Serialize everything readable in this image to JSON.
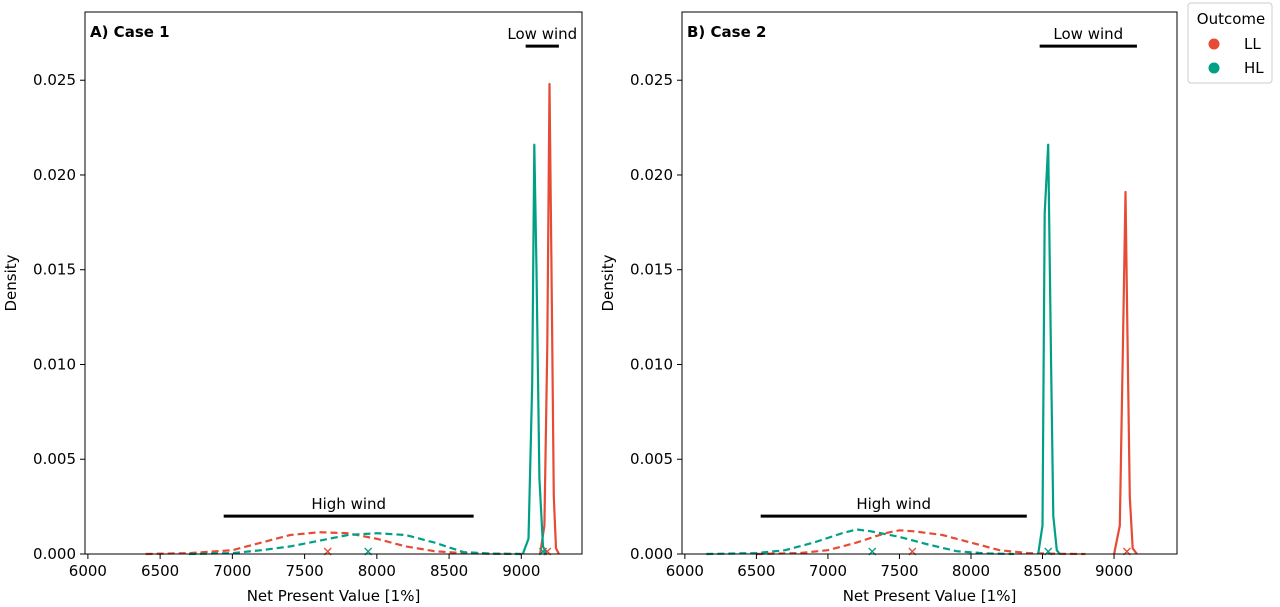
{
  "legend": {
    "title": "Outcome",
    "entries": [
      {
        "name": "LL",
        "color": "#e64b35"
      },
      {
        "name": "HL",
        "color": "#00a087"
      }
    ]
  },
  "chart_data": [
    {
      "type": "line",
      "panel_label": "A) Case 1",
      "xlabel": "Net Present Value [1%]",
      "ylabel": "Density",
      "xlim": [
        5980,
        9420
      ],
      "ylim": [
        0,
        0.0286
      ],
      "xticks": [
        6000,
        6500,
        7000,
        7500,
        8000,
        8500,
        9000
      ],
      "yticks": [
        0.0,
        0.005,
        0.01,
        0.015,
        0.02,
        0.025
      ],
      "ytick_labels": [
        "0.000",
        "0.005",
        "0.010",
        "0.015",
        "0.020",
        "0.025"
      ],
      "annotations": [
        {
          "text": "Low wind",
          "range": [
            9030,
            9260
          ],
          "y": 0.0268
        },
        {
          "text": "High wind",
          "range": [
            6940,
            8670
          ],
          "y": 0.002
        }
      ],
      "series": [
        {
          "name": "LL",
          "color": "#e64b35",
          "dash": true,
          "x": [
            6400,
            6700,
            7000,
            7200,
            7400,
            7600,
            7800,
            8000,
            8200,
            8400,
            8600,
            8800,
            9000
          ],
          "y": [
            0.0,
            5e-05,
            0.0002,
            0.0006,
            0.001,
            0.00115,
            0.0011,
            0.0008,
            0.0004,
            0.00015,
            4e-05,
            1e-05,
            0.0
          ]
        },
        {
          "name": "HL",
          "color": "#00a087",
          "dash": true,
          "x": [
            6700,
            7000,
            7200,
            7400,
            7600,
            7800,
            8000,
            8200,
            8400,
            8600,
            8800,
            9000
          ],
          "y": [
            0.0,
            5e-05,
            0.0002,
            0.0004,
            0.0007,
            0.001,
            0.0011,
            0.001,
            0.0006,
            0.0001,
            2e-05,
            0.0
          ]
        },
        {
          "name": "LL",
          "color": "#e64b35",
          "dash": false,
          "x": [
            9130,
            9160,
            9180,
            9195,
            9210,
            9225,
            9240,
            9260
          ],
          "y": [
            0.0,
            0.0015,
            0.011,
            0.0248,
            0.014,
            0.003,
            0.0003,
            0.0
          ]
        },
        {
          "name": "HL",
          "color": "#00a087",
          "dash": false,
          "x": [
            9010,
            9050,
            9075,
            9090,
            9105,
            9125,
            9150,
            9175
          ],
          "y": [
            0.0,
            0.0008,
            0.009,
            0.0216,
            0.015,
            0.004,
            0.0004,
            0.0
          ]
        }
      ],
      "markers": [
        {
          "x": 7660,
          "color": "#e64b35"
        },
        {
          "x": 7940,
          "color": "#00a087"
        },
        {
          "x": 9180,
          "color": "#e64b35"
        },
        {
          "x": 9150,
          "color": "#00a087"
        }
      ]
    },
    {
      "type": "line",
      "panel_label": "B) Case 2",
      "xlabel": "Net Present Value [1%]",
      "ylabel": "Density",
      "xlim": [
        5980,
        9440
      ],
      "ylim": [
        0,
        0.0286
      ],
      "xticks": [
        6000,
        6500,
        7000,
        7500,
        8000,
        8500,
        9000
      ],
      "yticks": [
        0.0,
        0.005,
        0.01,
        0.015,
        0.02,
        0.025
      ],
      "ytick_labels": [
        "0.000",
        "0.005",
        "0.010",
        "0.015",
        "0.020",
        "0.025"
      ],
      "annotations": [
        {
          "text": "Low wind",
          "range": [
            8480,
            9160
          ],
          "y": 0.0268
        },
        {
          "text": "High wind",
          "range": [
            6530,
            8390
          ],
          "y": 0.002
        }
      ],
      "series": [
        {
          "name": "LL",
          "color": "#e64b35",
          "dash": true,
          "x": [
            6500,
            6800,
            7000,
            7200,
            7400,
            7500,
            7600,
            7800,
            8000,
            8200,
            8400,
            8600,
            8800
          ],
          "y": [
            0.0,
            5e-05,
            0.0002,
            0.0006,
            0.0011,
            0.00125,
            0.0012,
            0.001,
            0.0006,
            0.0002,
            5e-05,
            1e-05,
            0.0
          ]
        },
        {
          "name": "HL",
          "color": "#00a087",
          "dash": true,
          "x": [
            6150,
            6500,
            6700,
            6900,
            7100,
            7200,
            7300,
            7500,
            7700,
            7900,
            8100,
            8300
          ],
          "y": [
            0.0,
            5e-05,
            0.0002,
            0.0006,
            0.0011,
            0.0013,
            0.0012,
            0.0009,
            0.0005,
            0.00015,
            3e-05,
            0.0
          ]
        },
        {
          "name": "LL",
          "color": "#e64b35",
          "dash": false,
          "x": [
            9000,
            9040,
            9060,
            9080,
            9095,
            9110,
            9130,
            9160
          ],
          "y": [
            0.0,
            0.0015,
            0.01,
            0.0191,
            0.011,
            0.003,
            0.0003,
            0.0
          ]
        },
        {
          "name": "HL",
          "color": "#00a087",
          "dash": false,
          "x": [
            8470,
            8500,
            8515,
            8540,
            8560,
            8575,
            8600,
            8620
          ],
          "y": [
            0.0,
            0.0015,
            0.018,
            0.0216,
            0.01,
            0.002,
            0.0002,
            0.0
          ]
        }
      ],
      "markers": [
        {
          "x": 7590,
          "color": "#e64b35"
        },
        {
          "x": 7310,
          "color": "#00a087"
        },
        {
          "x": 9090,
          "color": "#e64b35"
        },
        {
          "x": 8540,
          "color": "#00a087"
        }
      ]
    }
  ]
}
